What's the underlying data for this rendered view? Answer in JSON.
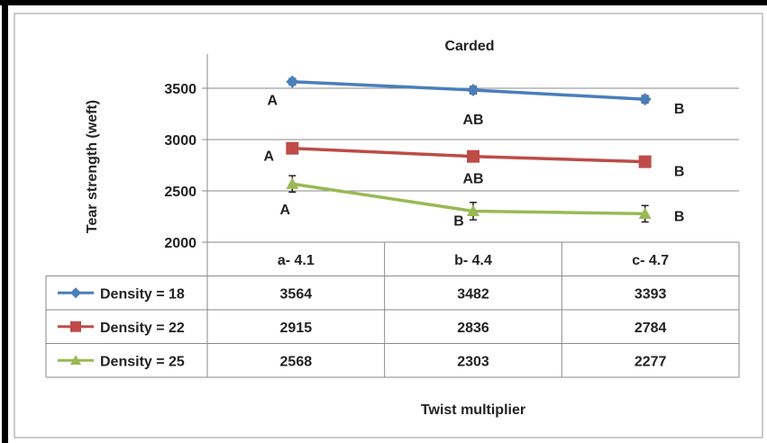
{
  "chart_data": {
    "type": "line",
    "title": "Carded",
    "xlabel": "Twist multiplier",
    "ylabel": "Tear strength (weft)",
    "categories": [
      "a- 4.1",
      "b- 4.4",
      "c- 4.7"
    ],
    "ylim": [
      2000,
      3700
    ],
    "yticks": [
      2000,
      2500,
      3000,
      3500
    ],
    "grid": true,
    "legend_placement": "data-table-left",
    "series": [
      {
        "name": "Density = 18",
        "values": [
          3564,
          3482,
          3393
        ],
        "errors": [
          30,
          35,
          35
        ],
        "color": "#4a7ebb",
        "marker": "diamond",
        "letters": [
          "A",
          "AB",
          "B"
        ]
      },
      {
        "name": "Density = 22",
        "values": [
          2915,
          2836,
          2784
        ],
        "errors": [
          0,
          0,
          0
        ],
        "color": "#be4b48",
        "marker": "square",
        "letters": [
          "A",
          "AB",
          "B"
        ]
      },
      {
        "name": "Density = 25",
        "values": [
          2568,
          2303,
          2277
        ],
        "errors": [
          80,
          85,
          80
        ],
        "color": "#98b954",
        "marker": "triangle",
        "letters": [
          "A",
          "B",
          "B"
        ]
      }
    ]
  }
}
